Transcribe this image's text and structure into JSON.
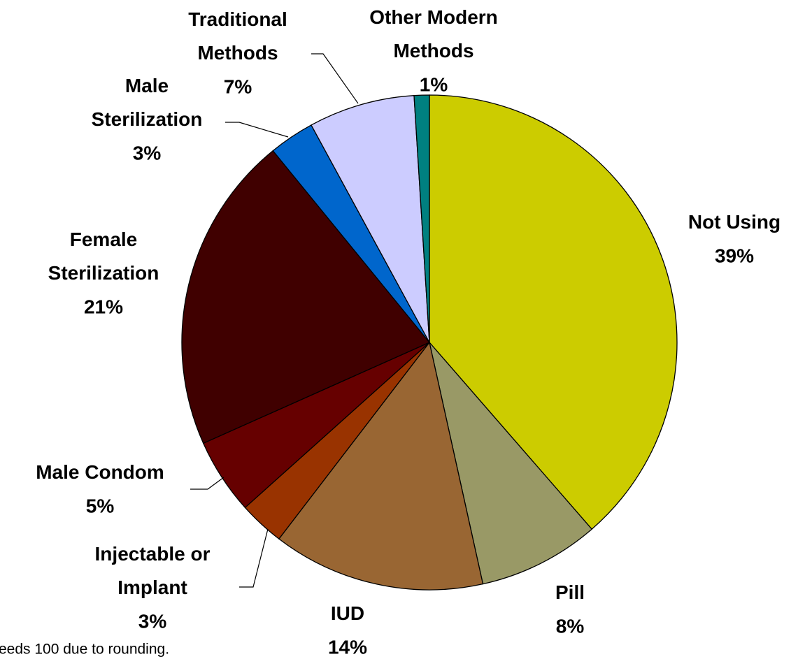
{
  "chart_data": {
    "type": "pie",
    "categories": [
      "Not Using",
      "Pill",
      "IUD",
      "Injectable or Implant",
      "Male Condom",
      "Female Sterilization",
      "Male Sterilization",
      "Traditional Methods",
      "Other Modern Methods"
    ],
    "values": [
      39,
      8,
      14,
      3,
      5,
      21,
      3,
      7,
      1
    ],
    "value_labels": [
      "39%",
      "8%",
      "14%",
      "3%",
      "5%",
      "21%",
      "3%",
      "7%",
      "1%"
    ],
    "colors": [
      "#cccc00",
      "#999966",
      "#996633",
      "#993300",
      "#660000",
      "#400000",
      "#0066cc",
      "#ccccff",
      "#008080"
    ],
    "note": "eeds 100 due to rounding."
  }
}
